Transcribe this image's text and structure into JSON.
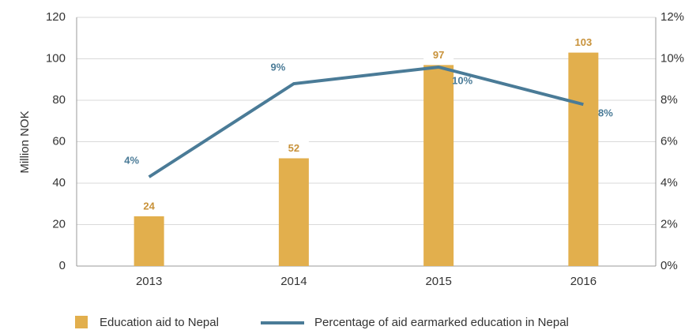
{
  "chart_data": {
    "type": "bar-line",
    "categories": [
      "2013",
      "2014",
      "2015",
      "2016"
    ],
    "y_label": "Million NOK",
    "series": [
      {
        "name": "Education aid to Nepal",
        "type": "bar",
        "color": "#e2af4d",
        "label_color": "#c8923a",
        "values": [
          24,
          52,
          97,
          103
        ]
      },
      {
        "name": "Percentage of aid earmarked education in Nepal",
        "type": "line",
        "axis": "y2",
        "color": "#4a7b97",
        "label_color": "#4a7b97",
        "values": [
          4.3,
          8.8,
          9.6,
          7.8
        ],
        "value_labels": [
          "4%",
          "9%",
          "10%",
          "8%"
        ]
      }
    ],
    "ylim": [
      0,
      120
    ],
    "yticks": [
      0,
      20,
      40,
      60,
      80,
      100,
      120
    ],
    "y2lim": [
      0,
      12
    ],
    "y2ticks": [
      {
        "value": 0,
        "label": "0%"
      },
      {
        "value": 2,
        "label": "2%"
      },
      {
        "value": 4,
        "label": "4%"
      },
      {
        "value": 6,
        "label": "6%"
      },
      {
        "value": 8,
        "label": "8%"
      },
      {
        "value": 10,
        "label": "10%"
      },
      {
        "value": 12,
        "label": "12%"
      }
    ],
    "grid": true
  }
}
